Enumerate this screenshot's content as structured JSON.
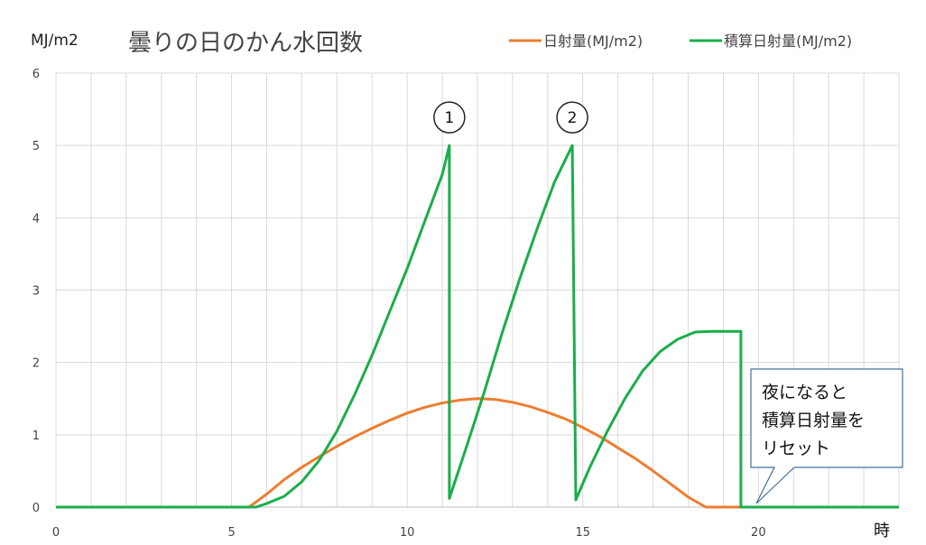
{
  "chart_data": {
    "type": "line",
    "title": "曇りの日のかん水回数",
    "ylabel": "MJ/m2",
    "xlabel": "時",
    "xlim": [
      0,
      24
    ],
    "ylim": [
      0,
      6
    ],
    "grid": true,
    "legend_position": "top-right",
    "x_ticks": [
      "0",
      "5",
      "10",
      "15",
      "20"
    ],
    "y_ticks": [
      "0",
      "1",
      "2",
      "3",
      "4",
      "5",
      "6"
    ],
    "series": [
      {
        "name": "日射量(MJ/m2)",
        "color": "#ed7d31",
        "points": [
          [
            0,
            0
          ],
          [
            5.5,
            0
          ],
          [
            6.0,
            0.18
          ],
          [
            6.5,
            0.38
          ],
          [
            7.0,
            0.55
          ],
          [
            7.5,
            0.7
          ],
          [
            8.0,
            0.84
          ],
          [
            8.5,
            0.97
          ],
          [
            9.0,
            1.09
          ],
          [
            9.5,
            1.2
          ],
          [
            10.0,
            1.3
          ],
          [
            10.5,
            1.38
          ],
          [
            11.0,
            1.44
          ],
          [
            11.5,
            1.48
          ],
          [
            12.0,
            1.5
          ],
          [
            12.5,
            1.49
          ],
          [
            13.0,
            1.45
          ],
          [
            13.5,
            1.39
          ],
          [
            14.0,
            1.31
          ],
          [
            14.5,
            1.22
          ],
          [
            15.0,
            1.1
          ],
          [
            15.5,
            0.97
          ],
          [
            16.0,
            0.82
          ],
          [
            16.5,
            0.67
          ],
          [
            17.0,
            0.5
          ],
          [
            17.5,
            0.32
          ],
          [
            18.0,
            0.14
          ],
          [
            18.5,
            0.0
          ],
          [
            24,
            0
          ]
        ]
      },
      {
        "name": "積算日射量(MJ/m2)",
        "color": "#1aae4a",
        "points": [
          [
            0,
            0
          ],
          [
            5.7,
            0
          ],
          [
            6.0,
            0.05
          ],
          [
            6.5,
            0.15
          ],
          [
            7.0,
            0.35
          ],
          [
            7.5,
            0.65
          ],
          [
            8.0,
            1.05
          ],
          [
            8.5,
            1.55
          ],
          [
            9.0,
            2.1
          ],
          [
            9.5,
            2.7
          ],
          [
            10.0,
            3.3
          ],
          [
            10.5,
            3.95
          ],
          [
            11.0,
            4.6
          ],
          [
            11.2,
            5.0
          ],
          [
            11.2,
            0.12
          ],
          [
            11.7,
            0.85
          ],
          [
            12.2,
            1.6
          ],
          [
            12.7,
            2.4
          ],
          [
            13.2,
            3.15
          ],
          [
            13.7,
            3.85
          ],
          [
            14.2,
            4.5
          ],
          [
            14.7,
            5.0
          ],
          [
            14.8,
            0.1
          ],
          [
            15.2,
            0.55
          ],
          [
            15.7,
            1.05
          ],
          [
            16.2,
            1.5
          ],
          [
            16.7,
            1.88
          ],
          [
            17.2,
            2.15
          ],
          [
            17.7,
            2.32
          ],
          [
            18.2,
            2.42
          ],
          [
            18.7,
            2.43
          ],
          [
            19.5,
            2.43
          ],
          [
            19.5,
            0
          ],
          [
            24,
            0
          ]
        ]
      }
    ],
    "annotations": [
      {
        "text": "1",
        "x": 11.2,
        "y": 5.0
      },
      {
        "text": "2",
        "x": 14.7,
        "y": 5.0
      }
    ],
    "callout": {
      "lines": [
        "夜になると",
        "積算日射量を",
        "リセット"
      ],
      "points_to": {
        "x": 19.8,
        "y": 0
      }
    }
  }
}
